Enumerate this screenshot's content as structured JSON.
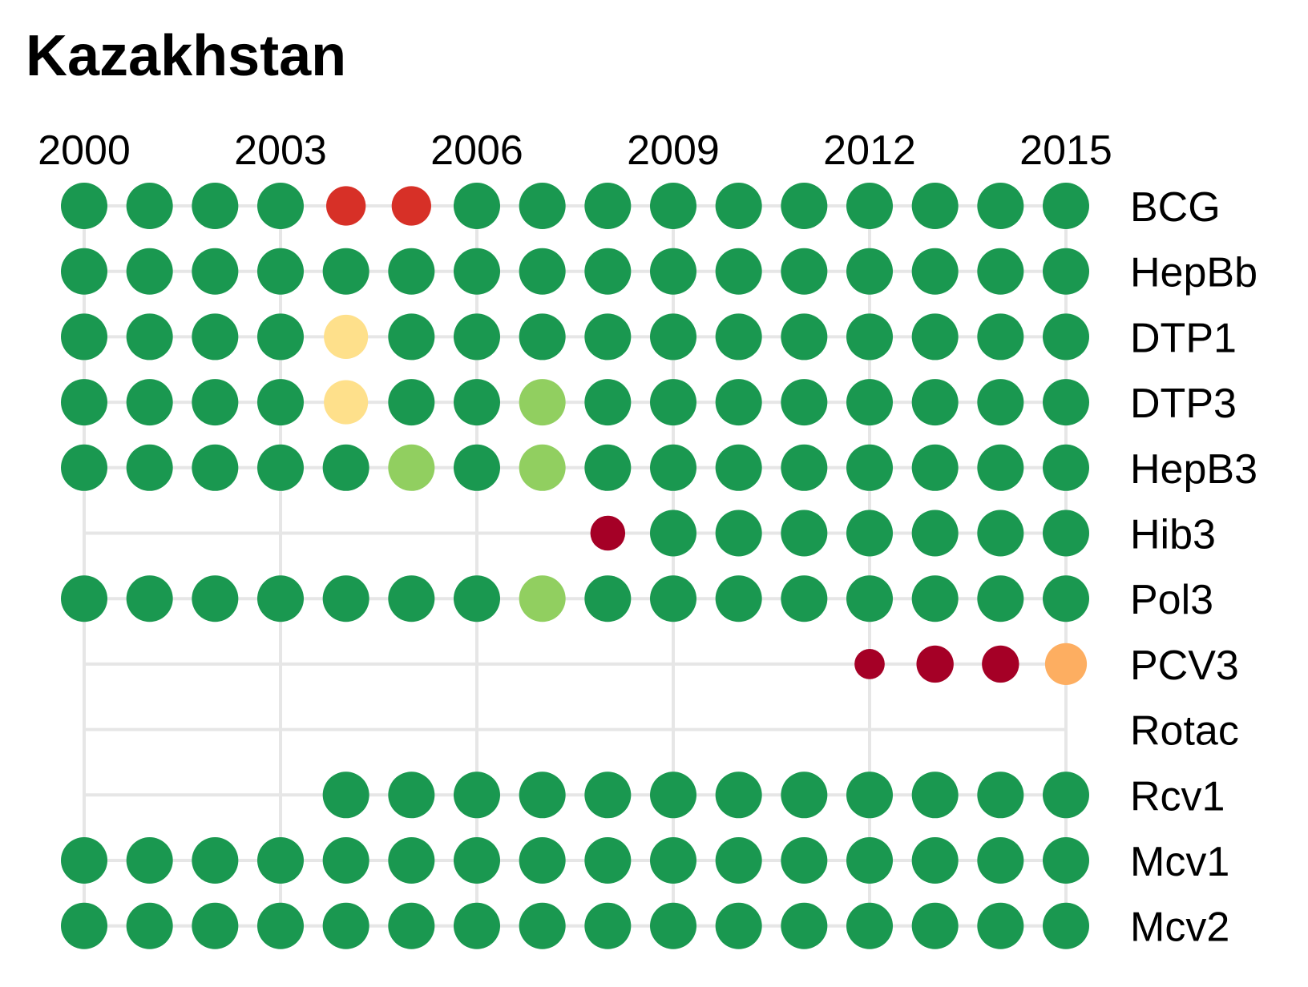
{
  "chart_data": {
    "type": "scatter",
    "title": "Kazakhstan",
    "x_ticks": [
      "2000",
      "2003",
      "2006",
      "2009",
      "2012",
      "2015"
    ],
    "years": [
      2000,
      2001,
      2002,
      2003,
      2004,
      2005,
      2006,
      2007,
      2008,
      2009,
      2010,
      2011,
      2012,
      2013,
      2014,
      2015
    ],
    "xlim": [
      2000,
      2015
    ],
    "grid": true,
    "legend": "none",
    "categories_colors": {
      "g": "#1a9850",
      "lg": "#91cf60",
      "y": "#fee08b",
      "o": "#fdae61",
      "r": "#d73027",
      "dr": "#a50026"
    },
    "series": [
      {
        "name": "BCG",
        "start": 2000,
        "end": 2015,
        "points": [
          [
            2000,
            "g",
            1
          ],
          [
            2001,
            "g",
            1
          ],
          [
            2002,
            "g",
            1
          ],
          [
            2003,
            "g",
            1
          ],
          [
            2004,
            "r",
            0.85
          ],
          [
            2005,
            "r",
            0.85
          ],
          [
            2006,
            "g",
            1
          ],
          [
            2007,
            "g",
            1
          ],
          [
            2008,
            "g",
            1
          ],
          [
            2009,
            "g",
            1
          ],
          [
            2010,
            "g",
            1
          ],
          [
            2011,
            "g",
            1
          ],
          [
            2012,
            "g",
            1
          ],
          [
            2013,
            "g",
            1
          ],
          [
            2014,
            "g",
            1
          ],
          [
            2015,
            "g",
            1
          ]
        ]
      },
      {
        "name": "HepBb",
        "start": 2000,
        "end": 2015,
        "points": [
          [
            2000,
            "g",
            1
          ],
          [
            2001,
            "g",
            1
          ],
          [
            2002,
            "g",
            1
          ],
          [
            2003,
            "g",
            1
          ],
          [
            2004,
            "g",
            1
          ],
          [
            2005,
            "g",
            1
          ],
          [
            2006,
            "g",
            1
          ],
          [
            2007,
            "g",
            1
          ],
          [
            2008,
            "g",
            1
          ],
          [
            2009,
            "g",
            1
          ],
          [
            2010,
            "g",
            1
          ],
          [
            2011,
            "g",
            1
          ],
          [
            2012,
            "g",
            1
          ],
          [
            2013,
            "g",
            1
          ],
          [
            2014,
            "g",
            1
          ],
          [
            2015,
            "g",
            1
          ]
        ]
      },
      {
        "name": "DTP1",
        "start": 2000,
        "end": 2015,
        "points": [
          [
            2000,
            "g",
            1
          ],
          [
            2001,
            "g",
            1
          ],
          [
            2002,
            "g",
            1
          ],
          [
            2003,
            "g",
            1
          ],
          [
            2004,
            "y",
            0.95
          ],
          [
            2005,
            "g",
            1
          ],
          [
            2006,
            "g",
            1
          ],
          [
            2007,
            "g",
            1
          ],
          [
            2008,
            "g",
            1
          ],
          [
            2009,
            "g",
            1
          ],
          [
            2010,
            "g",
            1
          ],
          [
            2011,
            "g",
            1
          ],
          [
            2012,
            "g",
            1
          ],
          [
            2013,
            "g",
            1
          ],
          [
            2014,
            "g",
            1
          ],
          [
            2015,
            "g",
            1
          ]
        ]
      },
      {
        "name": "DTP3",
        "start": 2000,
        "end": 2015,
        "points": [
          [
            2000,
            "g",
            1
          ],
          [
            2001,
            "g",
            1
          ],
          [
            2002,
            "g",
            1
          ],
          [
            2003,
            "g",
            1
          ],
          [
            2004,
            "y",
            0.95
          ],
          [
            2005,
            "g",
            1
          ],
          [
            2006,
            "g",
            1
          ],
          [
            2007,
            "lg",
            1
          ],
          [
            2008,
            "g",
            1
          ],
          [
            2009,
            "g",
            1
          ],
          [
            2010,
            "g",
            1
          ],
          [
            2011,
            "g",
            1
          ],
          [
            2012,
            "g",
            1
          ],
          [
            2013,
            "g",
            1
          ],
          [
            2014,
            "g",
            1
          ],
          [
            2015,
            "g",
            1
          ]
        ]
      },
      {
        "name": "HepB3",
        "start": 2000,
        "end": 2015,
        "points": [
          [
            2000,
            "g",
            1
          ],
          [
            2001,
            "g",
            1
          ],
          [
            2002,
            "g",
            1
          ],
          [
            2003,
            "g",
            1
          ],
          [
            2004,
            "g",
            1
          ],
          [
            2005,
            "lg",
            1
          ],
          [
            2006,
            "g",
            1
          ],
          [
            2007,
            "lg",
            1
          ],
          [
            2008,
            "g",
            1
          ],
          [
            2009,
            "g",
            1
          ],
          [
            2010,
            "g",
            1
          ],
          [
            2011,
            "g",
            1
          ],
          [
            2012,
            "g",
            1
          ],
          [
            2013,
            "g",
            1
          ],
          [
            2014,
            "g",
            1
          ],
          [
            2015,
            "g",
            1
          ]
        ]
      },
      {
        "name": "Hib3",
        "start": 2000,
        "end": 2015,
        "points": [
          [
            2008,
            "dr",
            0.75
          ],
          [
            2009,
            "g",
            1
          ],
          [
            2010,
            "g",
            1
          ],
          [
            2011,
            "g",
            1
          ],
          [
            2012,
            "g",
            1
          ],
          [
            2013,
            "g",
            1
          ],
          [
            2014,
            "g",
            1
          ],
          [
            2015,
            "g",
            1
          ]
        ]
      },
      {
        "name": "Pol3",
        "start": 2000,
        "end": 2015,
        "points": [
          [
            2000,
            "g",
            1
          ],
          [
            2001,
            "g",
            1
          ],
          [
            2002,
            "g",
            1
          ],
          [
            2003,
            "g",
            1
          ],
          [
            2004,
            "g",
            1
          ],
          [
            2005,
            "g",
            1
          ],
          [
            2006,
            "g",
            1
          ],
          [
            2007,
            "lg",
            1
          ],
          [
            2008,
            "g",
            1
          ],
          [
            2009,
            "g",
            1
          ],
          [
            2010,
            "g",
            1
          ],
          [
            2011,
            "g",
            1
          ],
          [
            2012,
            "g",
            1
          ],
          [
            2013,
            "g",
            1
          ],
          [
            2014,
            "g",
            1
          ],
          [
            2015,
            "g",
            1
          ]
        ]
      },
      {
        "name": "PCV3",
        "start": 2000,
        "end": 2015,
        "points": [
          [
            2012,
            "dr",
            0.65
          ],
          [
            2013,
            "dr",
            0.8
          ],
          [
            2014,
            "dr",
            0.8
          ],
          [
            2015,
            "o",
            0.9
          ]
        ]
      },
      {
        "name": "Rotac",
        "start": 2000,
        "end": 2015,
        "points": []
      },
      {
        "name": "Rcv1",
        "start": 2000,
        "end": 2015,
        "points": [
          [
            2004,
            "g",
            1
          ],
          [
            2005,
            "g",
            1
          ],
          [
            2006,
            "g",
            1
          ],
          [
            2007,
            "g",
            1
          ],
          [
            2008,
            "g",
            1
          ],
          [
            2009,
            "g",
            1
          ],
          [
            2010,
            "g",
            1
          ],
          [
            2011,
            "g",
            1
          ],
          [
            2012,
            "g",
            1
          ],
          [
            2013,
            "g",
            1
          ],
          [
            2014,
            "g",
            1
          ],
          [
            2015,
            "g",
            1
          ]
        ]
      },
      {
        "name": "Mcv1",
        "start": 2000,
        "end": 2015,
        "points": [
          [
            2000,
            "g",
            1
          ],
          [
            2001,
            "g",
            1
          ],
          [
            2002,
            "g",
            1
          ],
          [
            2003,
            "g",
            1
          ],
          [
            2004,
            "g",
            1
          ],
          [
            2005,
            "g",
            1
          ],
          [
            2006,
            "g",
            1
          ],
          [
            2007,
            "g",
            1
          ],
          [
            2008,
            "g",
            1
          ],
          [
            2009,
            "g",
            1
          ],
          [
            2010,
            "g",
            1
          ],
          [
            2011,
            "g",
            1
          ],
          [
            2012,
            "g",
            1
          ],
          [
            2013,
            "g",
            1
          ],
          [
            2014,
            "g",
            1
          ],
          [
            2015,
            "g",
            1
          ]
        ]
      },
      {
        "name": "Mcv2",
        "start": 2000,
        "end": 2015,
        "points": [
          [
            2000,
            "g",
            1
          ],
          [
            2001,
            "g",
            1
          ],
          [
            2002,
            "g",
            1
          ],
          [
            2003,
            "g",
            1
          ],
          [
            2004,
            "g",
            1
          ],
          [
            2005,
            "g",
            1
          ],
          [
            2006,
            "g",
            1
          ],
          [
            2007,
            "g",
            1
          ],
          [
            2008,
            "g",
            1
          ],
          [
            2009,
            "g",
            1
          ],
          [
            2010,
            "g",
            1
          ],
          [
            2011,
            "g",
            1
          ],
          [
            2012,
            "g",
            1
          ],
          [
            2013,
            "g",
            1
          ],
          [
            2014,
            "g",
            1
          ],
          [
            2015,
            "g",
            1
          ]
        ]
      }
    ]
  }
}
